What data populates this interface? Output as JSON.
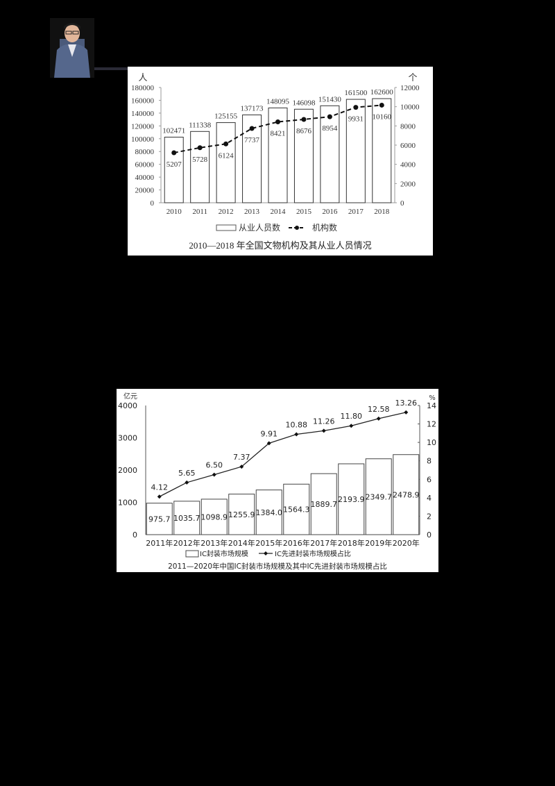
{
  "presenter": {
    "label": "presenter-photo"
  },
  "chart_data": [
    {
      "type": "bar",
      "title": "2010—2018 年全国文物机构及其从业人员情况",
      "categories": [
        "2010",
        "2011",
        "2012",
        "2013",
        "2014",
        "2015",
        "2016",
        "2017",
        "2018"
      ],
      "series": [
        {
          "name": "从业人员数",
          "type": "bar",
          "axis": "left",
          "values": [
            102471,
            111338,
            125155,
            137173,
            148095,
            146098,
            151430,
            161500,
            162600
          ]
        },
        {
          "name": "机构数",
          "type": "line",
          "style": "dashed",
          "axis": "right",
          "values": [
            5207,
            5728,
            6124,
            7737,
            8421,
            8676,
            8954,
            9931,
            10160
          ]
        }
      ],
      "ylabel": "人",
      "ylabel_right": "个",
      "ylim": [
        0,
        180000
      ],
      "ylim_right": [
        0,
        12000
      ],
      "yticks": [
        "0",
        "20000",
        "40000",
        "60000",
        "80000",
        "100000",
        "120000",
        "140000",
        "160000",
        "180000"
      ],
      "yticks_right": [
        "0",
        "2000",
        "4000",
        "6000",
        "8000",
        "10000",
        "12000"
      ],
      "legend": [
        "从业人员数",
        "机构数"
      ],
      "legend_position": "bottom",
      "grid": false
    },
    {
      "type": "bar",
      "title": "2011—2020年中国IC封装市场规模及其中IC先进封装市场规模占比",
      "categories": [
        "2011年",
        "2012年",
        "2013年",
        "2014年",
        "2015年",
        "2016年",
        "2017年",
        "2018年",
        "2019年",
        "2020年"
      ],
      "series": [
        {
          "name": "IC封装市场规模",
          "type": "bar",
          "axis": "left",
          "values": [
            975.7,
            1035.7,
            1098.9,
            1255.9,
            1384.0,
            1564.3,
            1889.7,
            2193.9,
            2349.7,
            2478.9
          ]
        },
        {
          "name": "IC先进封装市场规模占比",
          "type": "line",
          "axis": "right",
          "values": [
            4.12,
            5.65,
            6.5,
            7.37,
            9.91,
            10.88,
            11.26,
            11.8,
            12.58,
            13.26
          ]
        }
      ],
      "ylabel": "亿元",
      "ylabel_right": "%",
      "ylim": [
        0,
        4000
      ],
      "ylim_right": [
        0,
        14
      ],
      "yticks": [
        "0",
        "1000",
        "2000",
        "3000",
        "4000"
      ],
      "yticks_right": [
        "0",
        "2",
        "4",
        "6",
        "8",
        "10",
        "12",
        "14"
      ],
      "legend": [
        "IC封装市场规模",
        "IC先进封装市场规模占比"
      ],
      "legend_position": "bottom",
      "grid": false
    }
  ]
}
